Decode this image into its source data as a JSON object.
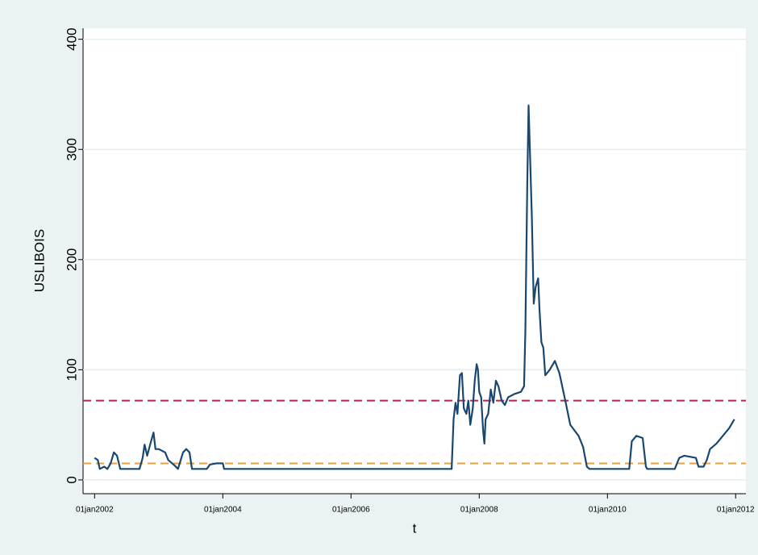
{
  "chart_data": {
    "type": "line",
    "y_label": "USLIBOIS",
    "x_label": "t",
    "xlim": [
      2001.82,
      2012.16
    ],
    "ylim": [
      -12.5,
      410
    ],
    "xticks": [
      {
        "value": 2002,
        "label": "01jan2002"
      },
      {
        "value": 2004,
        "label": "01jan2004"
      },
      {
        "value": 2006,
        "label": "01jan2006"
      },
      {
        "value": 2008,
        "label": "01jan2008"
      },
      {
        "value": 2010,
        "label": "01jan2010"
      },
      {
        "value": 2012,
        "label": "01jan2012"
      }
    ],
    "yticks": [
      0,
      100,
      200,
      300,
      400
    ],
    "grid": true,
    "reference_lines": [
      {
        "value": 72,
        "color": "#b5264c"
      },
      {
        "value": 15,
        "color": "#e8a040"
      }
    ],
    "series": [
      {
        "color": "#1a476f",
        "x": [
          2002.0,
          2002.05,
          2002.08,
          2002.15,
          2002.2,
          2002.25,
          2002.3,
          2002.35,
          2002.4,
          2002.7,
          2002.75,
          2002.78,
          2002.82,
          2002.88,
          2002.92,
          2002.95,
          2003.0,
          2003.1,
          2003.15,
          2003.25,
          2003.3,
          2003.38,
          2003.43,
          2003.48,
          2003.52,
          2003.75,
          2003.8,
          2003.9,
          2004.0,
          2004.02,
          2007.57,
          2007.6,
          2007.63,
          2007.66,
          2007.7,
          2007.73,
          2007.76,
          2007.8,
          2007.83,
          2007.86,
          2007.9,
          2007.93,
          2007.96,
          2007.98,
          2008.0,
          2008.03,
          2008.06,
          2008.08,
          2008.1,
          2008.14,
          2008.18,
          2008.22,
          2008.26,
          2008.3,
          2008.35,
          2008.4,
          2008.45,
          2008.55,
          2008.65,
          2008.7,
          2008.72,
          2008.75,
          2008.77,
          2008.79,
          2008.82,
          2008.85,
          2008.88,
          2008.92,
          2008.94,
          2008.97,
          2009.0,
          2009.03,
          2009.1,
          2009.18,
          2009.25,
          2009.35,
          2009.42,
          2009.55,
          2009.62,
          2009.68,
          2009.72,
          2010.34,
          2010.38,
          2010.45,
          2010.55,
          2010.6,
          2010.62,
          2011.05,
          2011.12,
          2011.2,
          2011.38,
          2011.42,
          2011.5,
          2011.55,
          2011.6,
          2011.7,
          2011.8,
          2011.9,
          2011.98
        ],
        "values": [
          20,
          18,
          10,
          12,
          10,
          15,
          25,
          22,
          10,
          10,
          20,
          32,
          22,
          35,
          43,
          28,
          28,
          25,
          18,
          13,
          10,
          25,
          28,
          25,
          10,
          10,
          14,
          15,
          15,
          10,
          10,
          55,
          70,
          60,
          95,
          97,
          65,
          60,
          72,
          50,
          65,
          90,
          105,
          100,
          80,
          75,
          45,
          33,
          55,
          60,
          82,
          70,
          90,
          85,
          72,
          68,
          75,
          78,
          80,
          85,
          135,
          270,
          340,
          300,
          240,
          160,
          175,
          183,
          155,
          125,
          120,
          95,
          100,
          108,
          97,
          70,
          50,
          40,
          30,
          12,
          10,
          10,
          35,
          40,
          38,
          12,
          10,
          10,
          20,
          22,
          20,
          12,
          12,
          18,
          28,
          33,
          40,
          47,
          55
        ]
      }
    ]
  }
}
